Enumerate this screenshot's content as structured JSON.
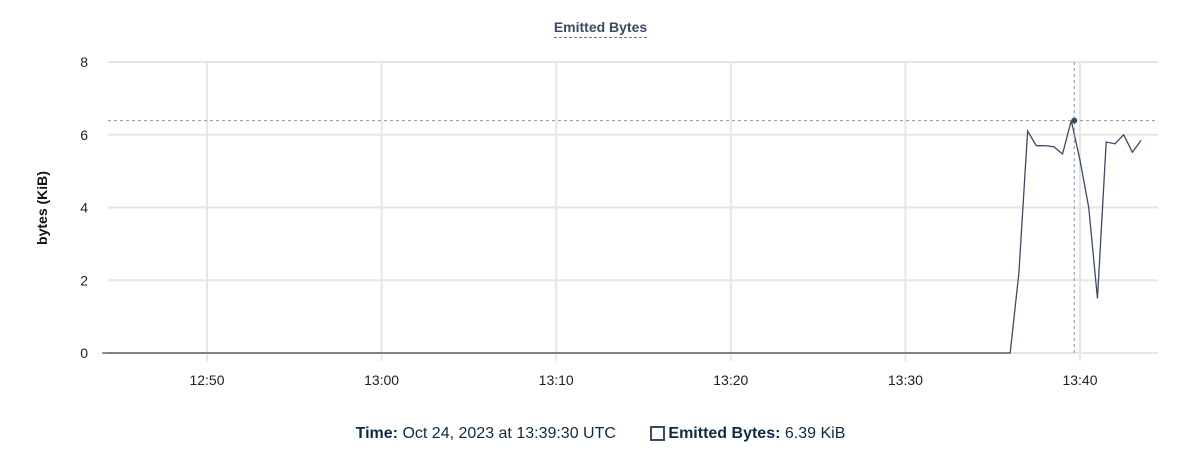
{
  "chart_data": {
    "type": "line",
    "title": "Emitted Bytes",
    "ylabel": "bytes (KiB)",
    "xlabel": "",
    "ylim": [
      0,
      8
    ],
    "yticks": [
      "0",
      "2",
      "4",
      "6",
      "8"
    ],
    "xticks": [
      "12:50",
      "13:00",
      "13:10",
      "13:20",
      "13:30",
      "13:40"
    ],
    "grid": true,
    "line_color": "#3d4a63",
    "series": [
      {
        "name": "Emitted Bytes",
        "x": [
          "12:44:00",
          "13:36:00",
          "13:36:30",
          "13:37:00",
          "13:37:30",
          "13:38:00",
          "13:38:30",
          "13:39:00",
          "13:39:30",
          "13:40:00",
          "13:40:30",
          "13:41:00",
          "13:41:30",
          "13:42:00",
          "13:42:30",
          "13:43:00",
          "13:43:30"
        ],
        "values": [
          0,
          0,
          2.2,
          6.1,
          5.7,
          5.7,
          5.67,
          5.47,
          6.39,
          5.3,
          4.0,
          1.5,
          5.8,
          5.75,
          6.0,
          5.52,
          5.85
        ]
      }
    ],
    "hover": {
      "x": "13:39:30",
      "y": 6.39
    }
  },
  "tooltip": {
    "time_label": "Time:",
    "time_value": "Oct 24, 2023 at 13:39:30 UTC",
    "series_label": "Emitted Bytes:",
    "series_value": "6.39 KiB"
  }
}
